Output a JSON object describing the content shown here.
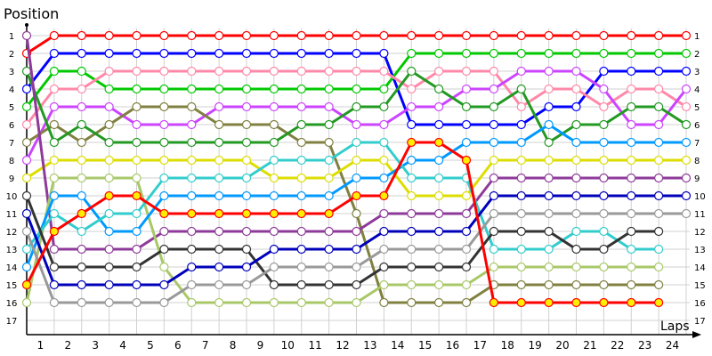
{
  "chart_data": {
    "type": "line",
    "ylabel": "Position",
    "xlabel": "Laps",
    "x": [
      0,
      1,
      2,
      3,
      4,
      5,
      6,
      7,
      8,
      9,
      10,
      11,
      12,
      13,
      14,
      15,
      16,
      17,
      18,
      19,
      20,
      21,
      22,
      23,
      24
    ],
    "xtick_labels": [
      "1",
      "2",
      "3",
      "4",
      "5",
      "6",
      "7",
      "8",
      "9",
      "10",
      "11",
      "12",
      "13",
      "14",
      "15",
      "16",
      "17",
      "18",
      "19",
      "20",
      "21",
      "22",
      "23",
      "24"
    ],
    "ytick_labels": [
      "1",
      "2",
      "3",
      "4",
      "5",
      "6",
      "7",
      "8",
      "9",
      "10",
      "11",
      "12",
      "13",
      "14",
      "15",
      "16",
      "17"
    ],
    "ylim": [
      1,
      17
    ],
    "y_inverted": true,
    "grid": true,
    "series": [
      {
        "color": "#ff0000",
        "fill": "#ffffff",
        "values": [
          2,
          1,
          1,
          1,
          1,
          1,
          1,
          1,
          1,
          1,
          1,
          1,
          1,
          1,
          1,
          1,
          1,
          1,
          1,
          1,
          1,
          1,
          1,
          1,
          1
        ]
      },
      {
        "color": "#0000ff",
        "fill": "#ffffff",
        "values": [
          4,
          2,
          2,
          2,
          2,
          2,
          2,
          2,
          2,
          2,
          2,
          2,
          2,
          2,
          6,
          6,
          6,
          6,
          6,
          5,
          5,
          3,
          3,
          3,
          3
        ]
      },
      {
        "color": "#00c800",
        "fill": "#ffffff",
        "values": [
          5,
          3,
          3,
          4,
          4,
          4,
          4,
          4,
          4,
          4,
          4,
          4,
          4,
          4,
          2,
          2,
          2,
          2,
          2,
          2,
          2,
          2,
          2,
          2,
          2
        ]
      },
      {
        "color": "#ff88a8",
        "fill": "#ffffff",
        "values": [
          6,
          4,
          4,
          3,
          3,
          3,
          3,
          3,
          3,
          3,
          3,
          3,
          3,
          3,
          4,
          3,
          3,
          3,
          5,
          4,
          4,
          5,
          4,
          4,
          5
        ]
      },
      {
        "color": "#cc44ff",
        "fill": "#ffffff",
        "values": [
          8,
          5,
          5,
          5,
          6,
          6,
          6,
          5,
          5,
          5,
          5,
          5,
          6,
          6,
          5,
          5,
          4,
          4,
          3,
          3,
          3,
          4,
          6,
          6,
          4
        ]
      },
      {
        "color": "#808040",
        "fill": "#ffffff",
        "values": [
          7,
          6,
          7,
          6,
          5,
          5,
          5,
          6,
          6,
          6,
          7,
          7,
          11,
          16,
          16,
          16,
          16,
          15,
          15,
          15,
          15,
          15,
          15,
          15,
          null
        ]
      },
      {
        "color": "#229922",
        "fill": "#ffffff",
        "values": [
          3,
          7,
          6,
          7,
          7,
          7,
          7,
          7,
          7,
          7,
          6,
          6,
          5,
          5,
          3,
          4,
          5,
          5,
          4,
          7,
          6,
          6,
          5,
          5,
          6
        ]
      },
      {
        "color": "#dddd00",
        "fill": "#ffffff",
        "values": [
          9,
          8,
          8,
          8,
          8,
          8,
          8,
          8,
          8,
          9,
          9,
          9,
          8,
          8,
          10,
          10,
          10,
          8,
          8,
          8,
          8,
          8,
          8,
          8,
          8
        ]
      },
      {
        "color": "#8e3a9a",
        "fill": "#ffffff",
        "values": [
          1,
          13,
          13,
          13,
          13,
          12,
          12,
          12,
          12,
          12,
          12,
          12,
          12,
          11,
          11,
          11,
          11,
          9,
          9,
          9,
          9,
          9,
          9,
          9,
          9
        ]
      },
      {
        "color": "#a8c868",
        "fill": "#ffffff",
        "values": [
          16,
          9,
          9,
          9,
          9,
          14,
          16,
          16,
          16,
          16,
          16,
          16,
          16,
          15,
          15,
          15,
          15,
          14,
          14,
          14,
          14,
          14,
          14,
          14,
          null
        ]
      },
      {
        "color": "#0099ff",
        "fill": "#ffffff",
        "values": [
          14,
          10,
          10,
          12,
          12,
          10,
          10,
          10,
          10,
          10,
          10,
          10,
          9,
          9,
          8,
          8,
          7,
          7,
          7,
          6,
          7,
          7,
          7,
          7,
          7
        ]
      },
      {
        "color": "#33cccc",
        "fill": "#ffffff",
        "values": [
          13,
          11,
          12,
          11,
          11,
          9,
          9,
          9,
          9,
          8,
          8,
          8,
          7,
          7,
          9,
          9,
          9,
          13,
          13,
          13,
          12,
          12,
          13,
          13,
          null
        ]
      },
      {
        "color": "#333333",
        "fill": "#ffffff",
        "values": [
          10,
          14,
          14,
          14,
          14,
          13,
          13,
          13,
          13,
          15,
          15,
          15,
          15,
          14,
          14,
          14,
          14,
          12,
          12,
          12,
          13,
          13,
          12,
          12,
          null
        ]
      },
      {
        "color": "#0000bb",
        "fill": "#ffffff",
        "values": [
          11,
          15,
          15,
          15,
          15,
          15,
          14,
          14,
          14,
          13,
          13,
          13,
          13,
          12,
          12,
          12,
          12,
          10,
          10,
          10,
          10,
          10,
          10,
          10,
          10
        ]
      },
      {
        "color": "#999999",
        "fill": "#ffffff",
        "values": [
          12,
          16,
          16,
          16,
          16,
          16,
          15,
          15,
          15,
          14,
          14,
          14,
          14,
          13,
          13,
          13,
          13,
          11,
          11,
          11,
          11,
          11,
          11,
          11,
          11
        ]
      },
      {
        "color": "#ff0000",
        "fill": "#ffee00",
        "values": [
          15,
          12,
          11,
          10,
          10,
          11,
          11,
          11,
          11,
          11,
          11,
          11,
          10,
          10,
          7,
          7,
          8,
          16,
          16,
          16,
          16,
          16,
          16,
          16,
          null
        ]
      }
    ]
  }
}
